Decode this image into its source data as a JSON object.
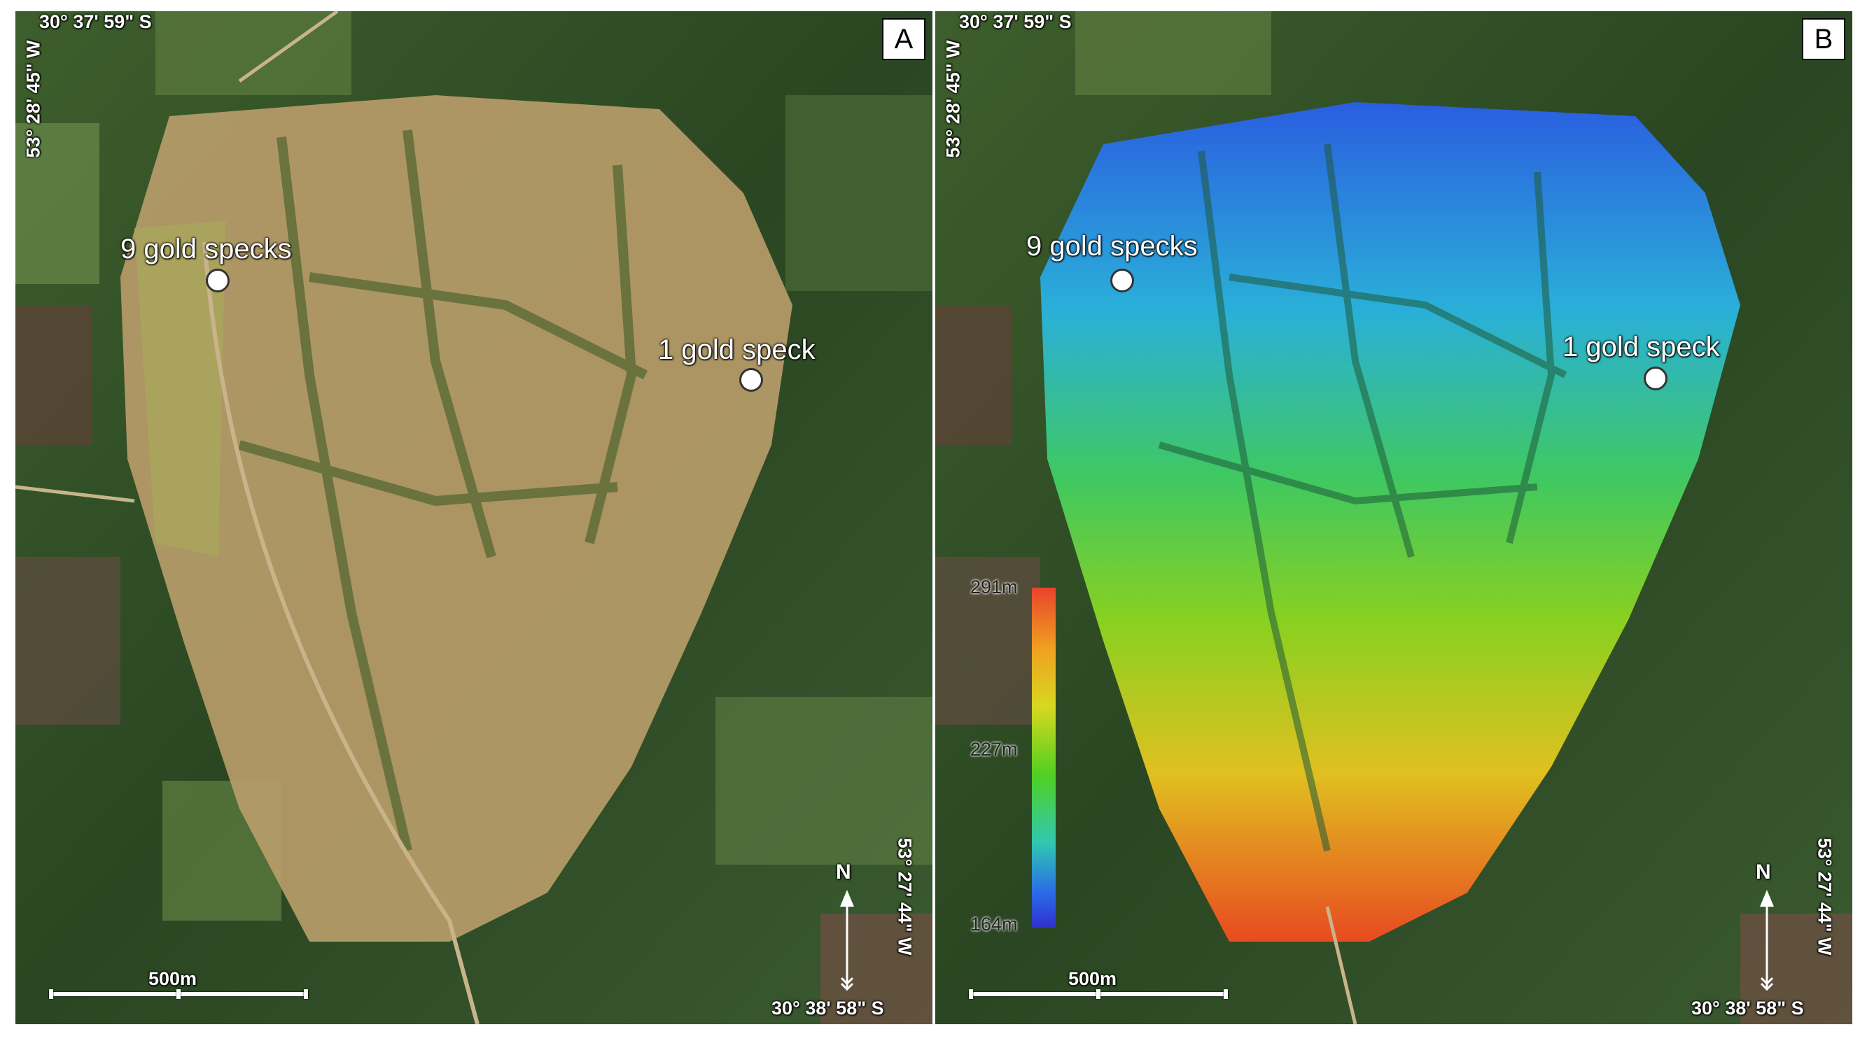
{
  "panels": [
    {
      "letter": "A",
      "coords": {
        "top_left_lat": "30° 37' 59\" S",
        "top_left_lon": "53° 28' 45\" W",
        "bottom_right_lat": "30° 38' 58\" S",
        "bottom_right_lon": "53° 27' 44\" W"
      },
      "samples": [
        {
          "label": "9 gold specks"
        },
        {
          "label": "1 gold speck"
        }
      ],
      "scale_label": "500m",
      "north_label": "N"
    },
    {
      "letter": "B",
      "coords": {
        "top_left_lat": "30° 37' 59\" S",
        "top_left_lon": "53° 28' 45\" W",
        "bottom_right_lat": "30° 38' 58\" S",
        "bottom_right_lon": "53° 27' 44\" W"
      },
      "samples": [
        {
          "label": "9 gold specks"
        },
        {
          "label": "1 gold speck"
        }
      ],
      "scale_label": "500m",
      "north_label": "N",
      "elevation_legend": {
        "max": "291m",
        "mid": "227m",
        "min": "164m",
        "colors": [
          "#e8442a",
          "#f0a020",
          "#d8d820",
          "#50d020",
          "#30c8b0",
          "#2a6ae8",
          "#3030d0"
        ]
      }
    }
  ],
  "colors": {
    "vegetation_dark": "#24401e",
    "field_light": "#6e8a3e",
    "survey_area": "#b79c69",
    "road": "#c9b48a"
  }
}
